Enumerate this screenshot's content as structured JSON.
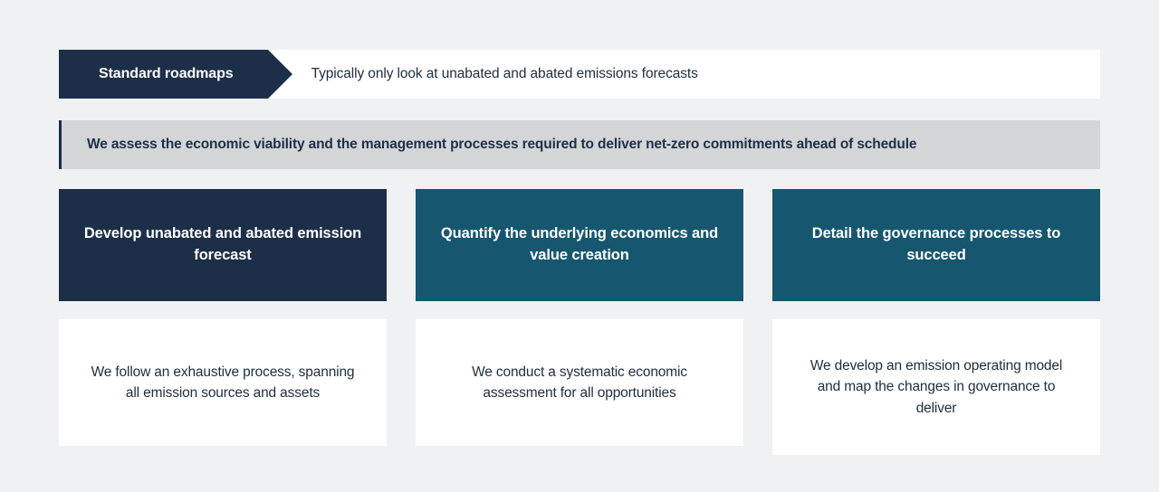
{
  "colors": {
    "page_bg": "#f0f1f2",
    "white": "#ffffff",
    "navy_dark": "#1d2f48",
    "teal_dark": "#17566f",
    "callout_bg": "#d3d5d7",
    "body_text": "#203040"
  },
  "top_bar": {
    "tag_label": "Standard roadmaps",
    "tag_bg": "#1d2f48",
    "description": "Typically only look at unabated and abated emissions forecasts"
  },
  "callout": {
    "text": "We assess the economic viability and the management processes required to deliver net-zero commitments ahead of schedule",
    "border_color": "#1d2f48",
    "bg": "#d3d5d7"
  },
  "columns": [
    {
      "head": "Develop unabated and abated emission forecast",
      "head_bg": "#1d2f48",
      "body": "We follow an exhaustive process, spanning all emission sources and assets"
    },
    {
      "head": "Quantify the underlying economics and value creation",
      "head_bg": "#17566f",
      "body": "We conduct a systematic economic assessment for all opportunities"
    },
    {
      "head": "Detail the governance processes to succeed",
      "head_bg": "#17566f",
      "body": "We develop an emission operating model and map the changes in governance to deliver"
    }
  ]
}
